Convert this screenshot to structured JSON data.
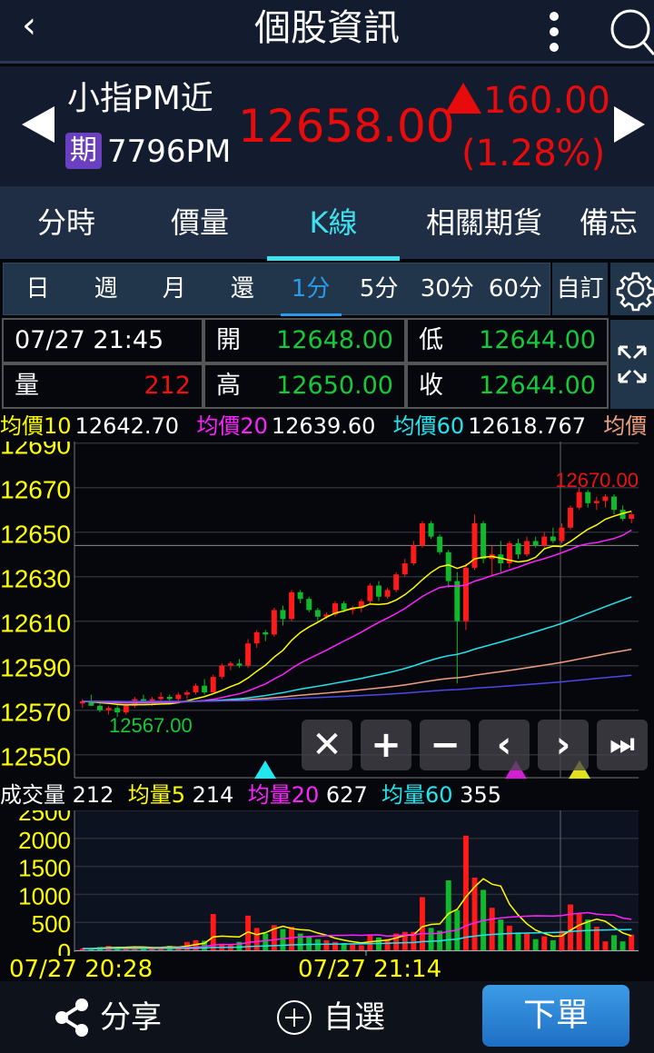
{
  "header": {
    "title": "個股資訊",
    "back_icon": "chevron-left-icon",
    "more_icon": "more-vertical-icon",
    "search_icon": "search-icon"
  },
  "quote": {
    "name": "小指PM近",
    "badge": "期",
    "code": "7796PM",
    "price": "12658.00",
    "change": "160.00",
    "change_pct": "(1.28%)",
    "direction": "up",
    "color_up": "#e80b0b"
  },
  "tabs": [
    {
      "label": "分時"
    },
    {
      "label": "價量"
    },
    {
      "label": "K線",
      "active": true
    },
    {
      "label": "相關期貨"
    },
    {
      "label": "備忘"
    }
  ],
  "periods": [
    {
      "label": "日"
    },
    {
      "label": "週"
    },
    {
      "label": "月"
    },
    {
      "label": "還"
    },
    {
      "label": "1分",
      "active": true
    },
    {
      "label": "5分"
    },
    {
      "label": "30分"
    },
    {
      "label": "60分"
    }
  ],
  "custom_label": "自訂",
  "info": {
    "datetime": "07/27 21:45",
    "vol_label": "量",
    "vol": "212",
    "open_label": "開",
    "open": "12648.00",
    "high_label": "高",
    "high": "12650.00",
    "low_label": "低",
    "low": "12644.00",
    "close_label": "收",
    "close": "12644.00"
  },
  "ma_legend": [
    {
      "label": "均價10",
      "value": "12642.70",
      "color": "#ffff00"
    },
    {
      "label": "均價20",
      "value": "12639.60",
      "color": "#ff22ff"
    },
    {
      "label": "均價60",
      "value": "12618.767",
      "color": "#22e5ee"
    },
    {
      "label": "均價",
      "value": "",
      "color": "#f0a080"
    }
  ],
  "vol_legend": [
    {
      "label": "成交量",
      "value": "212",
      "color": "#ffffff"
    },
    {
      "label": "均量5",
      "value": "214",
      "color": "#ffff00"
    },
    {
      "label": "均量20",
      "value": "627",
      "color": "#ff22ff"
    },
    {
      "label": "均量60",
      "value": "355",
      "color": "#22e5ee"
    }
  ],
  "controls": {
    "close": "✕",
    "zoom_in": "+",
    "zoom_out": "−",
    "prev": "‹",
    "next": "›",
    "latest": "⏭"
  },
  "chart_data": {
    "type": "candlestick",
    "price_axis": {
      "ticks": [
        "12690",
        "12670",
        "12650",
        "12630",
        "12610",
        "12590",
        "12570",
        "12550"
      ],
      "ylim": [
        12550,
        12690
      ]
    },
    "max_label": "12670.00",
    "min_label": "12567.00",
    "reference_price": 12644,
    "ma_periods": [
      10,
      20,
      60,
      120,
      240
    ],
    "ma_colors": [
      "#ffff00",
      "#ff22ff",
      "#22e5ee",
      "#f0a080",
      "#4a4ae8"
    ],
    "volume_axis": {
      "ticks": [
        "2500",
        "2000",
        "1500",
        "1000",
        "500",
        "0"
      ],
      "ylim": [
        0,
        2500
      ]
    },
    "vol_ma_periods": [
      5,
      20,
      60
    ],
    "vol_ma_colors": [
      "#ffff00",
      "#ff22ff",
      "#22e5ee"
    ],
    "x_labels": [
      "07/27 20:28",
      "07/27 21:14"
    ],
    "colors": {
      "up": "#ff1a1a",
      "down": "#10b82c"
    },
    "candles_ohlcv": [
      [
        12573,
        12575,
        12571,
        12574,
        30
      ],
      [
        12574,
        12577,
        12572,
        12572,
        40
      ],
      [
        12572,
        12573,
        12569,
        12570,
        60
      ],
      [
        12570,
        12572,
        12568,
        12571,
        80
      ],
      [
        12571,
        12572,
        12567,
        12569,
        50
      ],
      [
        12569,
        12573,
        12568,
        12572,
        40
      ],
      [
        12572,
        12576,
        12571,
        12575,
        70
      ],
      [
        12575,
        12577,
        12573,
        12574,
        50
      ],
      [
        12574,
        12576,
        12572,
        12575,
        40
      ],
      [
        12575,
        12578,
        12574,
        12576,
        60
      ],
      [
        12576,
        12577,
        12573,
        12575,
        80
      ],
      [
        12575,
        12578,
        12574,
        12577,
        50
      ],
      [
        12577,
        12579,
        12575,
        12578,
        150
      ],
      [
        12578,
        12582,
        12577,
        12581,
        180
      ],
      [
        12581,
        12584,
        12577,
        12578,
        170
      ],
      [
        12578,
        12586,
        12578,
        12585,
        650
      ],
      [
        12585,
        12591,
        12584,
        12590,
        120
      ],
      [
        12590,
        12592,
        12588,
        12591,
        110
      ],
      [
        12591,
        12593,
        12589,
        12590,
        150
      ],
      [
        12590,
        12602,
        12589,
        12600,
        620
      ],
      [
        12600,
        12606,
        12598,
        12605,
        400
      ],
      [
        12605,
        12606,
        12601,
        12604,
        300
      ],
      [
        12604,
        12616,
        12603,
        12615,
        450
      ],
      [
        12615,
        12617,
        12608,
        12611,
        380
      ],
      [
        12611,
        12624,
        12610,
        12623,
        420
      ],
      [
        12623,
        12624,
        12618,
        12620,
        300
      ],
      [
        12620,
        12621,
        12614,
        12615,
        250
      ],
      [
        12615,
        12616,
        12610,
        12612,
        200
      ],
      [
        12612,
        12614,
        12611,
        12613,
        180
      ],
      [
        12613,
        12619,
        12612,
        12618,
        150
      ],
      [
        12618,
        12619,
        12614,
        12615,
        130
      ],
      [
        12615,
        12617,
        12613,
        12616,
        110
      ],
      [
        12616,
        12620,
        12614,
        12619,
        90
      ],
      [
        12619,
        12627,
        12618,
        12626,
        280
      ],
      [
        12626,
        12628,
        12619,
        12621,
        230
      ],
      [
        12621,
        12625,
        12620,
        12624,
        200
      ],
      [
        12624,
        12632,
        12623,
        12631,
        300
      ],
      [
        12631,
        12638,
        12630,
        12636,
        330
      ],
      [
        12636,
        12646,
        12635,
        12644,
        330
      ],
      [
        12644,
        12655,
        12643,
        12654,
        950
      ],
      [
        12654,
        12655,
        12647,
        12648,
        400
      ],
      [
        12648,
        12649,
        12640,
        12641,
        350
      ],
      [
        12641,
        12642,
        12625,
        12628,
        1250
      ],
      [
        12628,
        12632,
        12582,
        12610,
        720
      ],
      [
        12610,
        12636,
        12606,
        12634,
        2050
      ],
      [
        12634,
        12658,
        12633,
        12654,
        1300
      ],
      [
        12654,
        12655,
        12636,
        12638,
        1080
      ],
      [
        12638,
        12644,
        12630,
        12640,
        760
      ],
      [
        12640,
        12646,
        12632,
        12636,
        550
      ],
      [
        12636,
        12646,
        12634,
        12645,
        440
      ],
      [
        12645,
        12647,
        12638,
        12640,
        320
      ],
      [
        12640,
        12648,
        12639,
        12646,
        300
      ],
      [
        12646,
        12648,
        12643,
        12644,
        200
      ],
      [
        12644,
        12650,
        12643,
        12648,
        250
      ],
      [
        12648,
        12652,
        12645,
        12646,
        180
      ],
      [
        12646,
        12654,
        12645,
        12652,
        350
      ],
      [
        12652,
        12662,
        12651,
        12661,
        820
      ],
      [
        12661,
        12670,
        12660,
        12668,
        650
      ],
      [
        12668,
        12669,
        12661,
        12663,
        550
      ],
      [
        12663,
        12666,
        12660,
        12664,
        420
      ],
      [
        12664,
        12667,
        12661,
        12666,
        160
      ],
      [
        12666,
        12667,
        12658,
        12660,
        270
      ],
      [
        12660,
        12662,
        12655,
        12656,
        160
      ],
      [
        12656,
        12659,
        12654,
        12658,
        280
      ]
    ]
  },
  "bottom": {
    "share": "分享",
    "watch": "自選",
    "order": "下單"
  }
}
